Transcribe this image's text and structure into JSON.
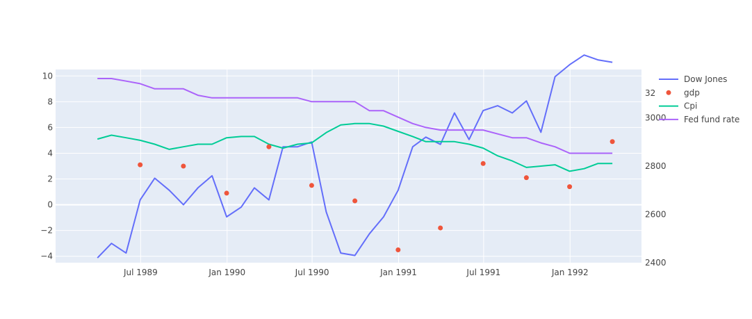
{
  "chart_data": {
    "type": "line",
    "title": "",
    "xlabel": "",
    "ylabel": "",
    "y2label": "",
    "y3label": "",
    "xlim": [
      "1989-01-01",
      "1992-06-01"
    ],
    "ylim": [
      -4.5,
      10.5
    ],
    "y2lim": [
      2400,
      3200
    ],
    "x_ticks": [
      {
        "date": "1989-07-01",
        "label": "Jul 1989"
      },
      {
        "date": "1990-01-01",
        "label": "Jan 1990"
      },
      {
        "date": "1990-07-01",
        "label": "Jul 1990"
      },
      {
        "date": "1991-01-01",
        "label": "Jan 1991"
      },
      {
        "date": "1991-07-01",
        "label": "Jul 1991"
      },
      {
        "date": "1992-01-01",
        "label": "Jan 1992"
      }
    ],
    "y_ticks": [
      -4,
      -2,
      0,
      2,
      4,
      6,
      8,
      10
    ],
    "y2_ticks": [
      2400,
      2600,
      2800,
      3000
    ],
    "y3_tick_label": "32",
    "grid": true,
    "legend_position": "right",
    "colors": {
      "plot_bg": "#E5ECF6",
      "grid": "#ffffff"
    },
    "series": [
      {
        "name": "Dow Jones",
        "axis": "y2",
        "mode": "lines",
        "color": "#636EFA",
        "x": [
          "1989-03-31",
          "1989-04-30",
          "1989-05-31",
          "1989-06-30",
          "1989-07-31",
          "1989-08-31",
          "1989-09-30",
          "1989-10-31",
          "1989-11-30",
          "1989-12-31",
          "1990-01-31",
          "1990-02-28",
          "1990-03-31",
          "1990-04-30",
          "1990-05-31",
          "1990-06-30",
          "1990-07-31",
          "1990-08-31",
          "1990-09-30",
          "1990-10-31",
          "1990-11-30",
          "1990-12-31",
          "1991-01-31",
          "1991-02-28",
          "1991-03-31",
          "1991-04-30",
          "1991-05-31",
          "1991-06-30",
          "1991-07-31",
          "1991-08-31",
          "1991-09-30",
          "1991-10-31",
          "1991-11-30",
          "1991-12-31",
          "1992-01-31",
          "1992-02-29",
          "1992-03-31"
        ],
        "y": [
          2420,
          2480,
          2440,
          2660,
          2750,
          2700,
          2640,
          2710,
          2760,
          2590,
          2630,
          2710,
          2660,
          2880,
          2880,
          2900,
          2610,
          2440,
          2430,
          2520,
          2590,
          2700,
          2880,
          2920,
          2890,
          3020,
          2910,
          3030,
          3050,
          3020,
          3070,
          2940,
          3170,
          3220,
          3260,
          3240,
          3230
        ]
      },
      {
        "name": "gdp",
        "axis": "y",
        "mode": "markers",
        "color": "#EF553B",
        "x": [
          "1989-06-30",
          "1989-09-30",
          "1989-12-31",
          "1990-03-31",
          "1990-06-30",
          "1990-09-30",
          "1990-12-31",
          "1991-03-31",
          "1991-06-30",
          "1991-09-30",
          "1991-12-31",
          "1992-03-31"
        ],
        "y": [
          3.1,
          3.0,
          0.9,
          4.5,
          1.5,
          0.3,
          -3.5,
          -1.8,
          3.2,
          2.1,
          1.4,
          4.9
        ]
      },
      {
        "name": "Cpi",
        "axis": "y",
        "mode": "lines",
        "color": "#00CC96",
        "x": [
          "1989-03-31",
          "1989-04-30",
          "1989-05-31",
          "1989-06-30",
          "1989-07-31",
          "1989-08-31",
          "1989-09-30",
          "1989-10-31",
          "1989-11-30",
          "1989-12-31",
          "1990-01-31",
          "1990-02-28",
          "1990-03-31",
          "1990-04-30",
          "1990-05-31",
          "1990-06-30",
          "1990-07-31",
          "1990-08-31",
          "1990-09-30",
          "1990-10-31",
          "1990-11-30",
          "1990-12-31",
          "1991-01-31",
          "1991-02-28",
          "1991-03-31",
          "1991-04-30",
          "1991-05-31",
          "1991-06-30",
          "1991-07-31",
          "1991-08-31",
          "1991-09-30",
          "1991-10-31",
          "1991-11-30",
          "1991-12-31",
          "1992-01-31",
          "1992-02-29",
          "1992-03-31"
        ],
        "y": [
          5.1,
          5.4,
          5.2,
          5.0,
          4.7,
          4.3,
          4.5,
          4.7,
          4.7,
          5.2,
          5.3,
          5.3,
          4.7,
          4.4,
          4.7,
          4.8,
          5.6,
          6.2,
          6.3,
          6.3,
          6.1,
          5.7,
          5.3,
          4.9,
          4.9,
          4.9,
          4.7,
          4.4,
          3.8,
          3.4,
          2.9,
          3.0,
          3.1,
          2.6,
          2.8,
          3.2,
          3.2
        ]
      },
      {
        "name": "Fed fund rate",
        "axis": "y",
        "mode": "lines",
        "color": "#AB63FA",
        "x": [
          "1989-03-31",
          "1989-04-30",
          "1989-05-31",
          "1989-06-30",
          "1989-07-31",
          "1989-08-31",
          "1989-09-30",
          "1989-10-31",
          "1989-11-30",
          "1989-12-31",
          "1990-01-31",
          "1990-02-28",
          "1990-03-31",
          "1990-04-30",
          "1990-05-31",
          "1990-06-30",
          "1990-07-31",
          "1990-08-31",
          "1990-09-30",
          "1990-10-31",
          "1990-11-30",
          "1990-12-31",
          "1991-01-31",
          "1991-02-28",
          "1991-03-31",
          "1991-04-30",
          "1991-05-31",
          "1991-06-30",
          "1991-07-31",
          "1991-08-31",
          "1991-09-30",
          "1991-10-31",
          "1991-11-30",
          "1991-12-31",
          "1992-01-31",
          "1992-02-29",
          "1992-03-31"
        ],
        "y": [
          9.8,
          9.8,
          9.6,
          9.4,
          9.0,
          9.0,
          9.0,
          8.5,
          8.3,
          8.3,
          8.3,
          8.3,
          8.3,
          8.3,
          8.3,
          8.0,
          8.0,
          8.0,
          8.0,
          7.3,
          7.3,
          6.8,
          6.3,
          6.0,
          5.8,
          5.8,
          5.8,
          5.8,
          5.5,
          5.2,
          5.2,
          4.8,
          4.5,
          4.0,
          4.0,
          4.0,
          4.0
        ]
      }
    ]
  }
}
